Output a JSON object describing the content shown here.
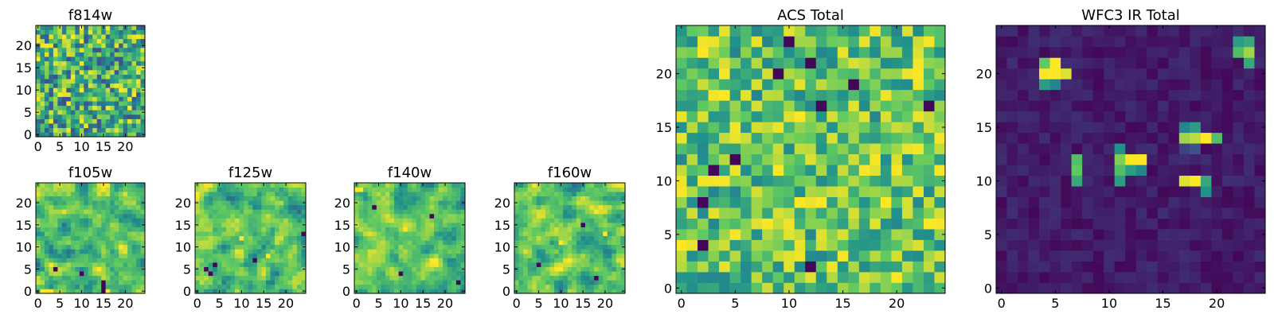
{
  "figure": {
    "colors": {
      "background": "#ffffff",
      "axis": "#000000"
    },
    "colormap": [
      "#440154",
      "#3b528b",
      "#21918c",
      "#5ec962",
      "#fde725"
    ]
  },
  "chart_data": [
    {
      "type": "heatmap",
      "name": "panel-f814w",
      "title": "f814w",
      "rows": 25,
      "cols": 25,
      "xticks": [
        0,
        5,
        10,
        15,
        20
      ],
      "yticks": [
        0,
        5,
        10,
        15,
        20
      ],
      "value_range": [
        0,
        1
      ],
      "seed": 11,
      "pattern": "noise",
      "values_note": "approximate per-pixel intensities in colormap units"
    },
    {
      "type": "heatmap",
      "name": "panel-f105w",
      "title": "f105w",
      "rows": 25,
      "cols": 25,
      "xticks": [
        0,
        5,
        10,
        15,
        20
      ],
      "yticks": [
        0,
        5,
        10,
        15,
        20
      ],
      "value_range": [
        0,
        1
      ],
      "seed": 23,
      "pattern": "smooth",
      "dark_spots": [
        [
          15,
          0
        ],
        [
          15,
          1
        ],
        [
          15,
          2
        ],
        [
          4,
          5
        ],
        [
          10,
          4
        ]
      ],
      "bright_spots": [
        [
          1,
          0
        ],
        [
          2,
          0
        ],
        [
          3,
          0
        ],
        [
          16,
          0
        ]
      ]
    },
    {
      "type": "heatmap",
      "name": "panel-f125w",
      "title": "f125w",
      "rows": 25,
      "cols": 25,
      "xticks": [
        0,
        5,
        10,
        15,
        20
      ],
      "yticks": [
        0,
        5,
        10,
        15,
        20
      ],
      "value_range": [
        0,
        1
      ],
      "seed": 37,
      "pattern": "smooth",
      "dark_spots": [
        [
          2,
          5
        ],
        [
          3,
          4
        ],
        [
          4,
          6
        ],
        [
          13,
          7
        ],
        [
          24,
          13
        ]
      ],
      "bright_spots": [
        [
          10,
          12
        ],
        [
          16,
          8
        ]
      ]
    },
    {
      "type": "heatmap",
      "name": "panel-f140w",
      "title": "f140w",
      "rows": 25,
      "cols": 25,
      "xticks": [
        0,
        5,
        10,
        15,
        20
      ],
      "yticks": [
        0,
        5,
        10,
        15,
        20
      ],
      "value_range": [
        0,
        1
      ],
      "seed": 53,
      "pattern": "smooth",
      "dark_spots": [
        [
          10,
          4
        ],
        [
          4,
          19
        ],
        [
          17,
          17
        ],
        [
          23,
          2
        ]
      ],
      "bright_spots": [
        [
          0,
          23
        ],
        [
          1,
          23
        ],
        [
          11,
          14
        ]
      ]
    },
    {
      "type": "heatmap",
      "name": "panel-f160w",
      "title": "f160w",
      "rows": 25,
      "cols": 25,
      "xticks": [
        0,
        5,
        10,
        15,
        20
      ],
      "yticks": [
        0,
        5,
        10,
        15,
        20
      ],
      "value_range": [
        0,
        1
      ],
      "seed": 71,
      "pattern": "smooth",
      "dark_spots": [
        [
          5,
          6
        ],
        [
          15,
          15
        ],
        [
          18,
          3
        ]
      ],
      "bright_spots": [
        [
          10,
          11
        ],
        [
          20,
          13
        ]
      ]
    },
    {
      "type": "heatmap",
      "name": "panel-acs-total",
      "title": "ACS Total",
      "rows": 25,
      "cols": 25,
      "xticks": [
        0,
        5,
        10,
        15,
        20
      ],
      "yticks": [
        0,
        5,
        10,
        15,
        20
      ],
      "value_range": [
        0,
        1
      ],
      "seed": 97,
      "pattern": "noise-bright",
      "dark_spots": [
        [
          10,
          23
        ],
        [
          12,
          21
        ],
        [
          9,
          20
        ],
        [
          16,
          19
        ],
        [
          13,
          17
        ],
        [
          5,
          12
        ],
        [
          3,
          11
        ],
        [
          2,
          8
        ],
        [
          2,
          4
        ],
        [
          23,
          17
        ],
        [
          12,
          2
        ]
      ],
      "bright_spots": [
        [
          4,
          18
        ],
        [
          9,
          11
        ],
        [
          22,
          20
        ],
        [
          20,
          1
        ]
      ]
    },
    {
      "type": "heatmap",
      "name": "panel-wfc3-ir-total",
      "title": "WFC3 IR Total",
      "rows": 25,
      "cols": 25,
      "xticks": [
        0,
        5,
        10,
        15,
        20
      ],
      "yticks": [
        0,
        5,
        10,
        15,
        20
      ],
      "value_range": [
        0,
        1
      ],
      "seed": 131,
      "pattern": "background",
      "sources": [
        [
          4,
          21,
          0.75
        ],
        [
          5,
          21,
          1.0
        ],
        [
          4,
          20,
          1.0
        ],
        [
          5,
          20,
          1.0
        ],
        [
          6,
          20,
          0.95
        ],
        [
          4,
          19,
          0.55
        ],
        [
          5,
          19,
          0.45
        ],
        [
          17,
          15,
          0.45
        ],
        [
          18,
          15,
          0.55
        ],
        [
          17,
          14,
          0.85
        ],
        [
          18,
          14,
          0.9
        ],
        [
          19,
          14,
          1.0
        ],
        [
          20,
          14,
          0.7
        ],
        [
          17,
          13,
          0.2
        ],
        [
          18,
          13,
          0.25
        ],
        [
          11,
          13,
          0.5
        ],
        [
          11,
          12,
          0.8
        ],
        [
          12,
          12,
          1.0
        ],
        [
          13,
          12,
          1.0
        ],
        [
          11,
          11,
          0.7
        ],
        [
          12,
          11,
          0.55
        ],
        [
          13,
          11,
          0.45
        ],
        [
          11,
          10,
          0.55
        ],
        [
          7,
          12,
          0.7
        ],
        [
          7,
          11,
          0.75
        ],
        [
          7,
          10,
          0.6
        ],
        [
          17,
          10,
          0.95
        ],
        [
          18,
          10,
          1.0
        ],
        [
          19,
          10,
          0.6
        ],
        [
          19,
          9,
          0.5
        ],
        [
          22,
          23,
          0.55
        ],
        [
          23,
          23,
          0.6
        ],
        [
          22,
          22,
          0.7
        ],
        [
          23,
          22,
          0.85
        ],
        [
          23,
          21,
          0.6
        ]
      ]
    }
  ]
}
